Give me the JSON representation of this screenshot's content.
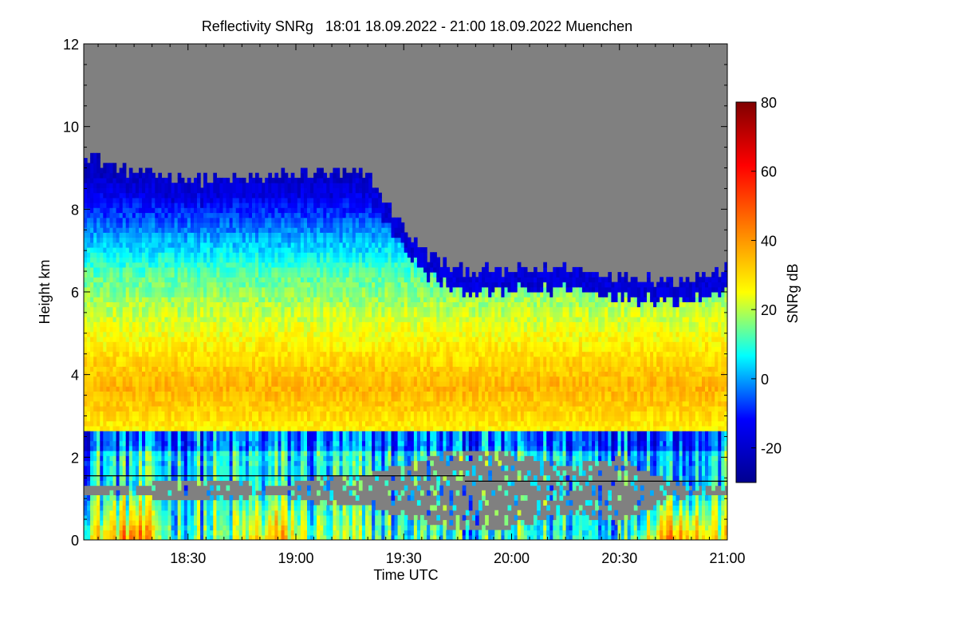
{
  "chart_data": {
    "type": "heatmap",
    "title": "Reflectivity SNRg   18:01 18.09.2022 - 21:00 18.09.2022 Muenchen",
    "xlabel": "Time UTC",
    "ylabel": "Height km",
    "colorbar_label": "SNRg dB",
    "x_range": [
      "18:01",
      "21:00"
    ],
    "x_ticks": [
      "18:30",
      "19:00",
      "19:30",
      "20:00",
      "20:30",
      "21:00"
    ],
    "x_tick_minutes": [
      30,
      60,
      90,
      120,
      150,
      180
    ],
    "y_range": [
      0,
      12
    ],
    "y_ticks": [
      "0",
      "2",
      "4",
      "6",
      "8",
      "10",
      "12"
    ],
    "colorbar_range": [
      -30,
      80
    ],
    "colorbar_ticks": [
      "-20",
      "0",
      "20",
      "40",
      "60",
      "80"
    ],
    "no_signal_color": "#808080",
    "colormap": [
      "#00008f",
      "#0000ff",
      "#00ffff",
      "#ffff00",
      "#ff7f00",
      "#ff0000",
      "#800000"
    ],
    "reference_line": {
      "segments": [
        {
          "x_start_min": 1,
          "x_end_min": 107,
          "height_km": 1.55
        },
        {
          "x_start_min": 107,
          "x_end_min": 180,
          "height_km": 1.42
        }
      ],
      "color": "#000000"
    },
    "columns": [
      {
        "t": 1,
        "top": 9.4,
        "low_top": 2.6,
        "low_gap": 0.3,
        "core": 32
      },
      {
        "t": 10,
        "top": 9.0,
        "low_top": 2.5,
        "low_gap": 0.2,
        "core": 40
      },
      {
        "t": 15,
        "top": 8.9,
        "low_top": 2.6,
        "low_gap": 0.1,
        "core": 55
      },
      {
        "t": 25,
        "top": 8.8,
        "low_top": 2.6,
        "low_gap": 0.6,
        "core": 18
      },
      {
        "t": 40,
        "top": 8.7,
        "low_top": 2.7,
        "low_gap": 0.5,
        "core": 18
      },
      {
        "t": 55,
        "top": 8.8,
        "low_top": 2.8,
        "low_gap": 0.2,
        "core": 42
      },
      {
        "t": 65,
        "top": 8.9,
        "low_top": 2.7,
        "low_gap": 0.6,
        "core": 22
      },
      {
        "t": 80,
        "top": 8.8,
        "low_top": 2.9,
        "low_gap": 0.8,
        "core": 18
      },
      {
        "t": 95,
        "top": 7.0,
        "low_top": 2.9,
        "low_gap": 1.5,
        "core": 15
      },
      {
        "t": 105,
        "top": 6.5,
        "low_top": 2.8,
        "low_gap": 2.0,
        "core": 10
      },
      {
        "t": 120,
        "top": 6.5,
        "low_top": 2.9,
        "low_gap": 1.8,
        "core": 12
      },
      {
        "t": 135,
        "top": 6.6,
        "low_top": 2.8,
        "low_gap": 1.2,
        "core": 14
      },
      {
        "t": 150,
        "top": 6.4,
        "low_top": 2.7,
        "low_gap": 1.6,
        "core": 12
      },
      {
        "t": 165,
        "top": 6.3,
        "low_top": 2.8,
        "low_gap": 0.4,
        "core": 55
      },
      {
        "t": 180,
        "top": 6.5,
        "low_top": 2.9,
        "low_gap": 0.2,
        "core": 30
      }
    ]
  }
}
